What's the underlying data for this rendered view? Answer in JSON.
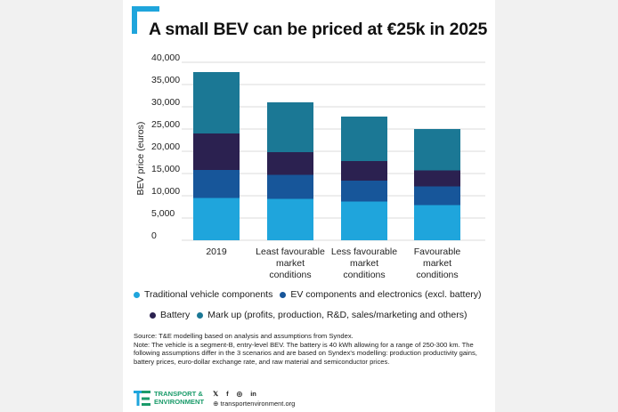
{
  "title": "A small BEV can be priced at €25k in 2025",
  "colors": {
    "traditional": "#1fa5dc",
    "ev_components": "#17569a",
    "battery": "#2b2150",
    "markup": "#1b7895",
    "grid": "#cfcfcf",
    "accent": "#1fa5dc"
  },
  "chart_data": {
    "type": "bar",
    "stacked": true,
    "ylabel": "BEV price (euros)",
    "ylim": [
      0,
      40000
    ],
    "yticks": [
      0,
      5000,
      10000,
      15000,
      20000,
      25000,
      30000,
      35000,
      40000
    ],
    "ytick_labels": [
      "0",
      "5,000",
      "10,000",
      "15,000",
      "20,000",
      "25,000",
      "30,000",
      "35,000",
      "40,000"
    ],
    "grid": true,
    "categories": [
      [
        "2019"
      ],
      [
        "Least favourable",
        "market",
        "conditions"
      ],
      [
        "Less favourable",
        "market",
        "conditions"
      ],
      [
        "Favourable",
        "market",
        "conditions"
      ]
    ],
    "series": [
      {
        "name": "Traditional vehicle components",
        "values": [
          9500,
          9300,
          8700,
          7900
        ]
      },
      {
        "name": "EV components and electronics (excl. battery)",
        "values": [
          6300,
          5400,
          4700,
          4200
        ]
      },
      {
        "name": "Battery",
        "values": [
          8200,
          5100,
          4400,
          3600
        ]
      },
      {
        "name": "Mark up (profits, production, R&D, sales/marketing and others)",
        "values": [
          13800,
          11200,
          10000,
          9300
        ]
      }
    ]
  },
  "legend": {
    "items": [
      "Traditional vehicle components",
      "EV components and electronics (excl. battery)",
      "Battery",
      "Mark up (profits, production, R&D, sales/marketing and others)"
    ]
  },
  "source": {
    "line1": "Source: T&E modelling based on analysis and assumptions from Syndex.",
    "line2": "Note: The vehicle is a segment-B, entry-level BEV. The battery is 40 kWh allowing for a range of 250-300 km. The following assumptions differ in the 3 scenarios and are based on Syndex's modelling: production productivity gains, battery prices, euro-dollar exchange rate, and raw material and semiconductor prices."
  },
  "footer": {
    "logo_line1": "TRANSPORT &",
    "logo_line2": "ENVIRONMENT",
    "social_icons": [
      "twitter-icon",
      "facebook-icon",
      "instagram-icon",
      "linkedin-icon"
    ],
    "website": "transportenvironment.org"
  }
}
